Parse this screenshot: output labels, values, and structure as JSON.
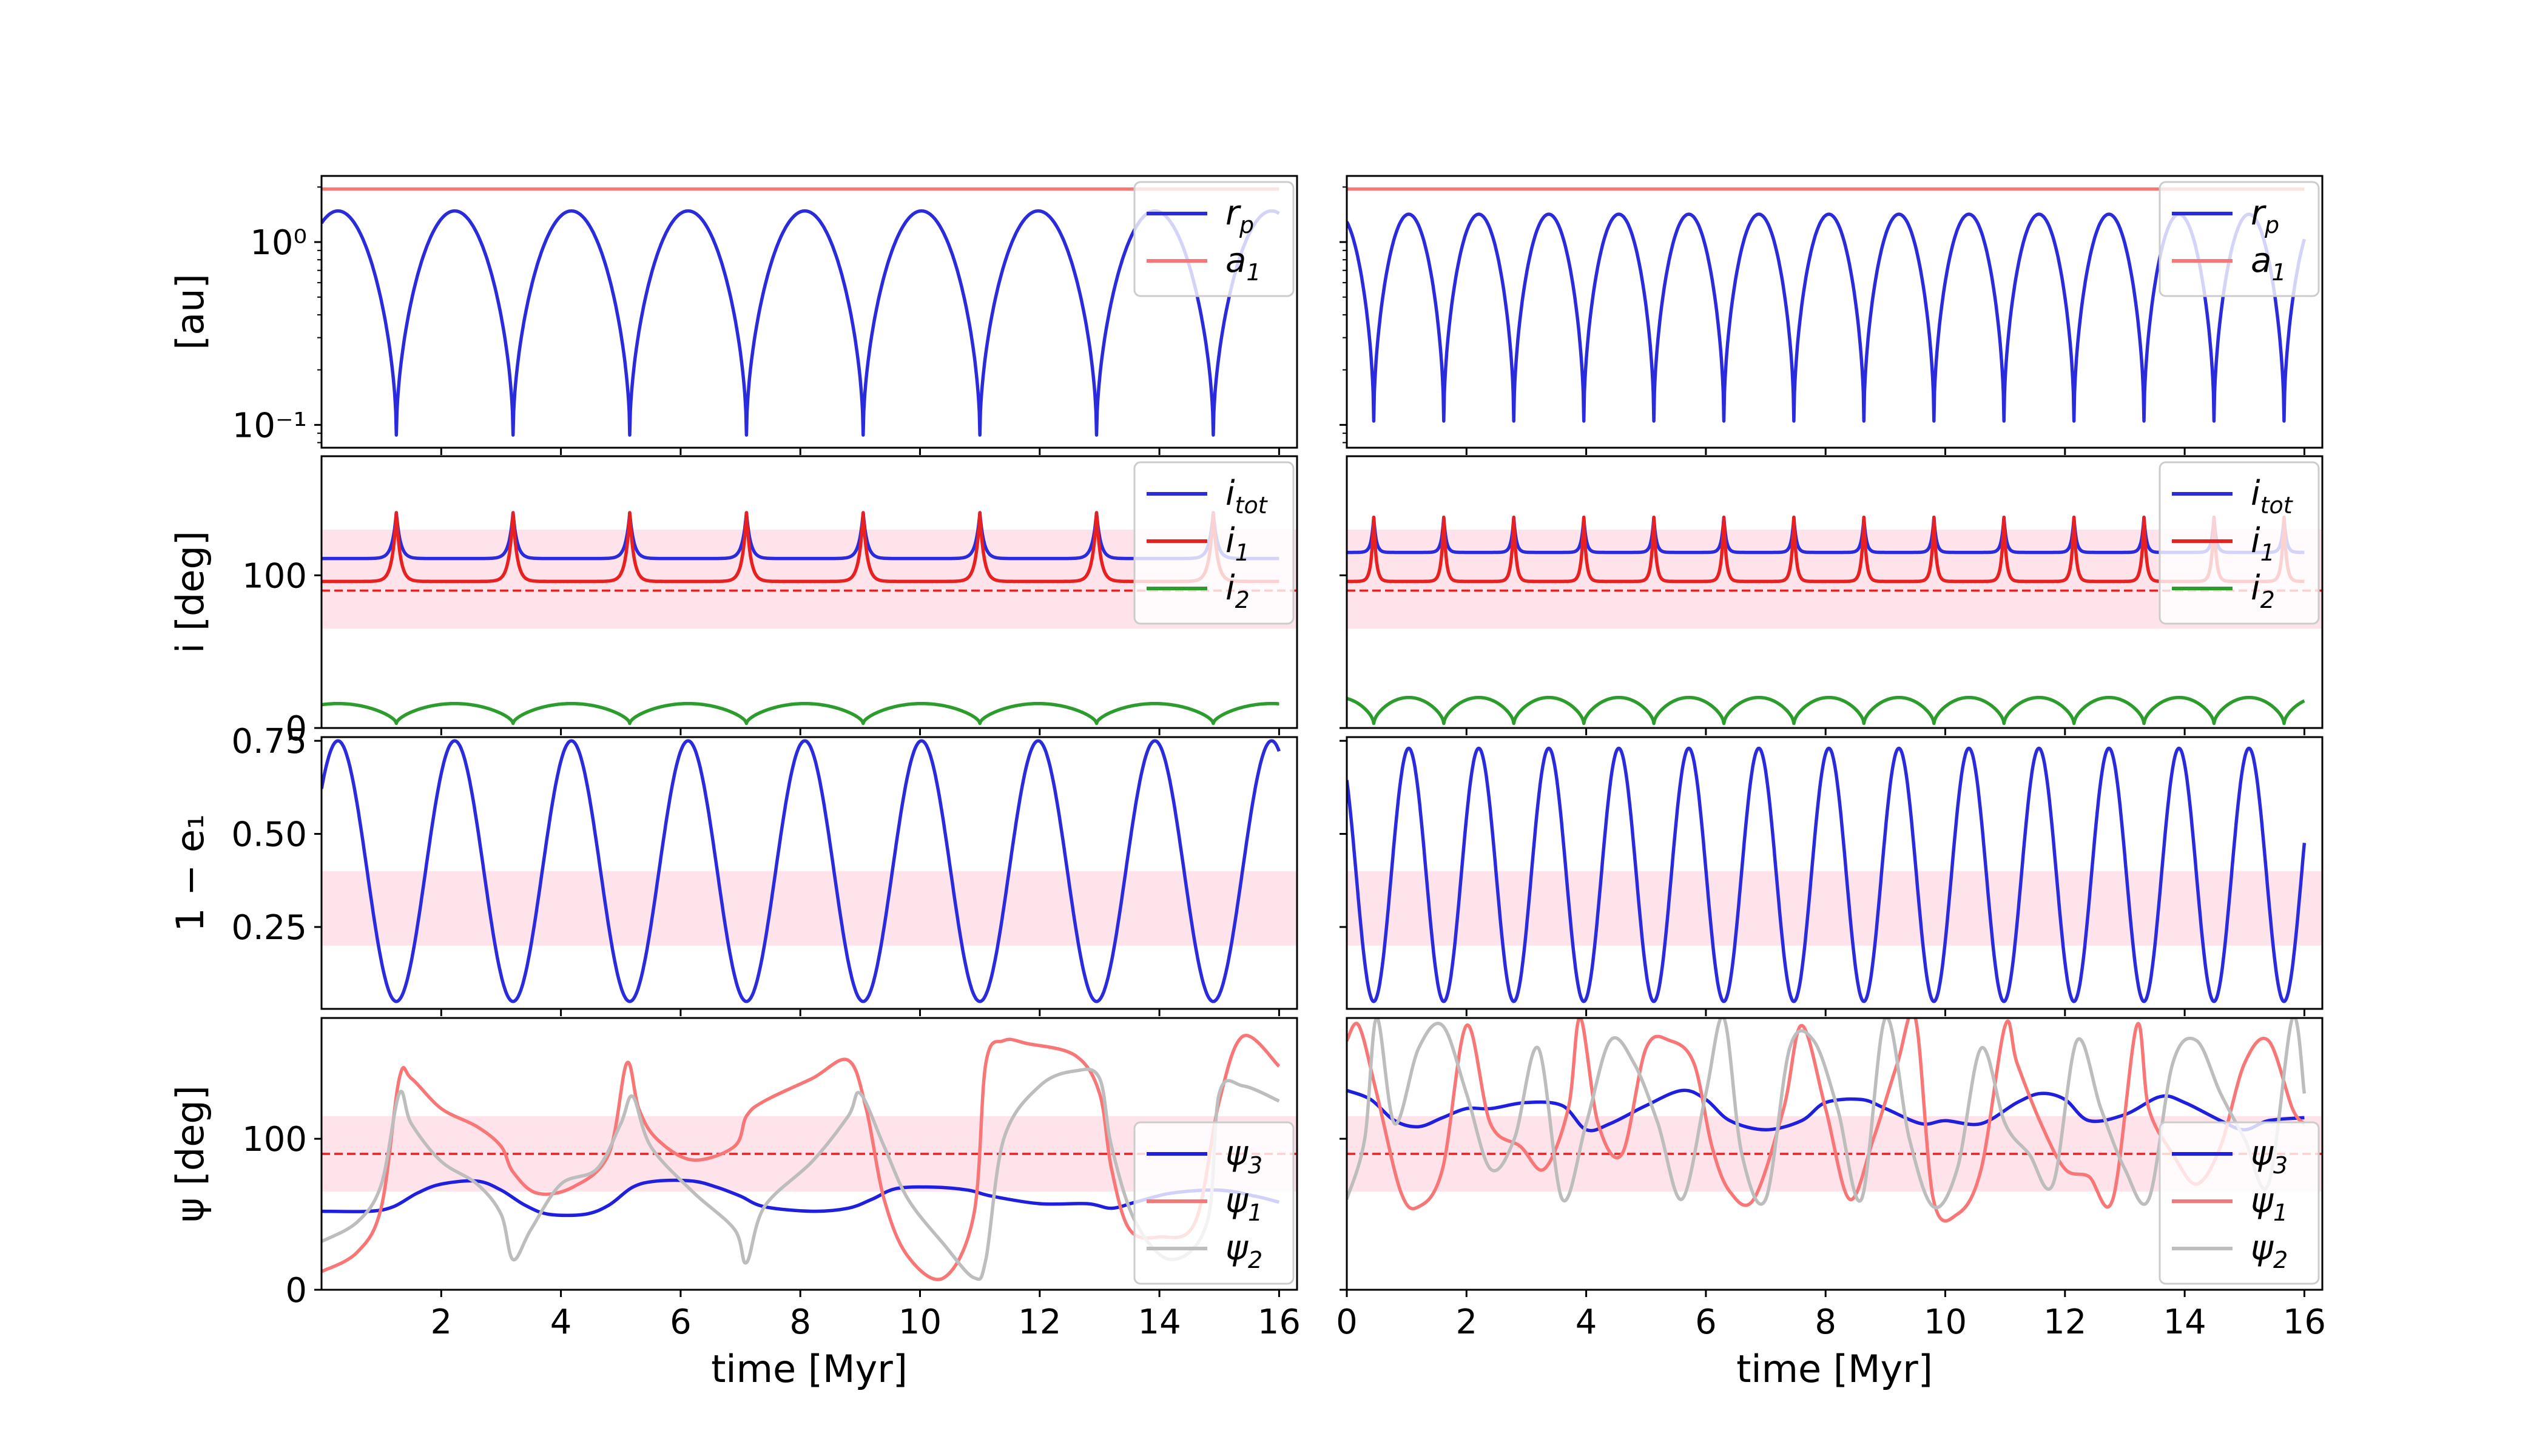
{
  "chart_data": [
    {
      "type": "line",
      "panel": "top-left",
      "ylabel": "[au]",
      "yscale": "log",
      "xlim": [
        0,
        16.3
      ],
      "ylim": [
        0.075,
        2.3
      ],
      "ytick_labels": [
        "10⁻¹",
        "10⁰"
      ],
      "ytick_values": [
        0.1,
        1
      ],
      "xtick_labels": [],
      "legend": "top-right",
      "series": [
        {
          "name": "r_p",
          "color": "#2b2bde",
          "kind": "rp",
          "min": 0.088,
          "max": 1.48,
          "period": 1.95,
          "phase": 1.25
        },
        {
          "name": "a₁",
          "color": "#f87676",
          "kind": "const",
          "value": 1.95
        }
      ],
      "legend_entries": [
        {
          "label": "r",
          "sub": "p",
          "color": "#2b2bde"
        },
        {
          "label": "a",
          "sub": "1",
          "color": "#f87676"
        }
      ]
    },
    {
      "type": "line",
      "panel": "top-right",
      "ylabel": "",
      "yscale": "log",
      "xlim": [
        0,
        16.3
      ],
      "ylim": [
        0.075,
        2.3
      ],
      "ytick_labels": [],
      "xtick_labels": [],
      "legend": "top-right",
      "series": [
        {
          "name": "r_p",
          "color": "#2b2bde",
          "kind": "rp",
          "min": 0.105,
          "max": 1.42,
          "period": 1.17,
          "phase": 0.45
        },
        {
          "name": "a₁",
          "color": "#f87676",
          "kind": "const",
          "value": 1.95
        }
      ],
      "legend_entries": [
        {
          "label": "r",
          "sub": "p",
          "color": "#2b2bde"
        },
        {
          "label": "a",
          "sub": "1",
          "color": "#f87676"
        }
      ]
    },
    {
      "type": "line",
      "panel": "row2-left",
      "ylabel": "i [deg]",
      "xlim": [
        0,
        16.3
      ],
      "ylim": [
        0,
        178
      ],
      "ytick_labels": [
        "0",
        "100"
      ],
      "ytick_values": [
        0,
        100
      ],
      "band": [
        65,
        130
      ],
      "hline": 90,
      "legend": "top-right",
      "series": [
        {
          "name": "i_tot",
          "color": "#2b2bde",
          "kind": "spike",
          "base": 111,
          "peak": 141,
          "period": 1.95,
          "phase": 1.25
        },
        {
          "name": "i₁",
          "color": "#e8201f",
          "kind": "spike",
          "base": 96,
          "peak": 141,
          "period": 1.95,
          "phase": 1.25
        },
        {
          "name": "i₂",
          "color": "#2c9c2c",
          "kind": "dip",
          "base": 16,
          "low": 3,
          "period": 1.95,
          "phase": 1.25
        }
      ],
      "legend_entries": [
        {
          "label": "i",
          "sub": "tot",
          "color": "#2b2bde"
        },
        {
          "label": "i",
          "sub": "1",
          "color": "#e8201f"
        },
        {
          "label": "i",
          "sub": "2",
          "color": "#2c9c2c"
        }
      ]
    },
    {
      "type": "line",
      "panel": "row2-right",
      "ylabel": "",
      "xlim": [
        0,
        16.3
      ],
      "ylim": [
        0,
        178
      ],
      "ytick_labels": [],
      "band": [
        65,
        130
      ],
      "hline": 90,
      "legend": "top-right",
      "series": [
        {
          "name": "i_tot",
          "color": "#2b2bde",
          "kind": "spike",
          "base": 115,
          "peak": 138,
          "period": 1.17,
          "phase": 0.45
        },
        {
          "name": "i₁",
          "color": "#e8201f",
          "kind": "spike",
          "base": 96,
          "peak": 138,
          "period": 1.17,
          "phase": 0.45
        },
        {
          "name": "i₂",
          "color": "#2c9c2c",
          "kind": "dip",
          "base": 20,
          "low": 3,
          "period": 1.17,
          "phase": 0.45
        }
      ],
      "legend_entries": [
        {
          "label": "i",
          "sub": "tot",
          "color": "#2b2bde"
        },
        {
          "label": "i",
          "sub": "1",
          "color": "#e8201f"
        },
        {
          "label": "i",
          "sub": "2",
          "color": "#2c9c2c"
        }
      ]
    },
    {
      "type": "line",
      "panel": "row3-left",
      "ylabel": "1 − e₁",
      "xlim": [
        0,
        16.3
      ],
      "ylim": [
        0.03,
        0.76
      ],
      "ytick_labels": [
        "0.25",
        "0.50",
        "0.75"
      ],
      "ytick_values": [
        0.25,
        0.5,
        0.75
      ],
      "band": [
        0.2,
        0.4
      ],
      "series": [
        {
          "name": "1-e1",
          "color": "#2b2bde",
          "kind": "osc",
          "min": 0.05,
          "max": 0.75,
          "period": 1.95,
          "phase": 1.25
        }
      ]
    },
    {
      "type": "line",
      "panel": "row3-right",
      "ylabel": "",
      "xlim": [
        0,
        16.3
      ],
      "ylim": [
        0.03,
        0.76
      ],
      "ytick_labels": [],
      "band": [
        0.2,
        0.4
      ],
      "series": [
        {
          "name": "1-e1",
          "color": "#2b2bde",
          "kind": "osc",
          "min": 0.05,
          "max": 0.73,
          "period": 1.17,
          "phase": 0.45
        }
      ]
    },
    {
      "type": "line",
      "panel": "row4-left",
      "ylabel": "ψ [deg]",
      "xlabel": "time [Myr]",
      "xlim": [
        0,
        16.3
      ],
      "ylim": [
        0,
        180
      ],
      "ytick_labels": [
        "0",
        "100"
      ],
      "ytick_values": [
        0,
        100
      ],
      "xtick_labels": [
        "2",
        "4",
        "6",
        "8",
        "10",
        "12",
        "14",
        "16"
      ],
      "xtick_values": [
        2,
        4,
        6,
        8,
        10,
        12,
        14,
        16
      ],
      "band": [
        65,
        115
      ],
      "hline": 90,
      "legend": "lower-right",
      "series": [
        {
          "name": "ψ₃",
          "color": "#1f1fe0",
          "x": [
            0,
            0.8,
            1.2,
            1.6,
            2.0,
            2.6,
            3.0,
            3.4,
            3.8,
            4.4,
            4.8,
            5.2,
            5.6,
            6.2,
            6.6,
            7.0,
            7.4,
            8.2,
            8.8,
            9.2,
            9.6,
            10.2,
            10.8,
            11.2,
            12.0,
            12.8,
            13.2,
            13.6,
            14.2,
            15.0,
            15.6,
            16.0
          ],
          "values": [
            52,
            52,
            55,
            64,
            70,
            72,
            66,
            56,
            50,
            50,
            56,
            68,
            72,
            72,
            68,
            62,
            55,
            52,
            54,
            60,
            67,
            68,
            66,
            62,
            57,
            57,
            54,
            58,
            64,
            66,
            62,
            58
          ]
        },
        {
          "name": "ψ₁",
          "color": "#f87676",
          "x": [
            0,
            0.6,
            1.0,
            1.3,
            1.5,
            2.0,
            2.6,
            3.0,
            3.2,
            3.6,
            4.2,
            4.8,
            5.1,
            5.3,
            5.6,
            6.2,
            6.9,
            7.1,
            7.4,
            8.2,
            8.8,
            9.1,
            9.4,
            9.8,
            10.4,
            10.9,
            11.1,
            11.4,
            11.8,
            12.6,
            13.0,
            13.2,
            13.5,
            14.0,
            14.6,
            15.0,
            15.4,
            16.0
          ],
          "values": [
            12,
            25,
            55,
            140,
            140,
            120,
            108,
            95,
            78,
            64,
            68,
            90,
            150,
            120,
            100,
            86,
            95,
            115,
            125,
            140,
            152,
            120,
            60,
            22,
            8,
            50,
            150,
            165,
            163,
            155,
            130,
            80,
            40,
            35,
            45,
            125,
            168,
            148
          ]
        },
        {
          "name": "ψ₂",
          "color": "#bdbdbd",
          "x": [
            0,
            0.6,
            1.0,
            1.3,
            1.5,
            2.0,
            2.6,
            3.0,
            3.2,
            3.5,
            4.0,
            4.6,
            5.0,
            5.2,
            5.5,
            6.2,
            6.9,
            7.1,
            7.4,
            8.2,
            8.8,
            9.0,
            9.4,
            9.8,
            10.4,
            10.9,
            11.1,
            11.4,
            12.0,
            12.6,
            13.0,
            13.2,
            13.6,
            14.2,
            14.8,
            15.0,
            15.4,
            16.0
          ],
          "values": [
            32,
            45,
            70,
            130,
            110,
            85,
            70,
            50,
            20,
            40,
            70,
            80,
            110,
            128,
            95,
            65,
            40,
            18,
            55,
            85,
            115,
            130,
            95,
            60,
            30,
            8,
            20,
            100,
            135,
            145,
            140,
            95,
            45,
            20,
            45,
            130,
            135,
            125
          ]
        }
      ],
      "legend_entries": [
        {
          "label": "ψ",
          "sub": "3",
          "color": "#1f1fe0"
        },
        {
          "label": "ψ",
          "sub": "1",
          "color": "#f87676"
        },
        {
          "label": "ψ",
          "sub": "2",
          "color": "#bdbdbd"
        }
      ]
    },
    {
      "type": "line",
      "panel": "row4-right",
      "ylabel": "",
      "xlabel": "time [Myr]",
      "xlim": [
        0,
        16.3
      ],
      "ylim": [
        0,
        180
      ],
      "ytick_labels": [],
      "xtick_labels": [
        "0",
        "2",
        "4",
        "6",
        "8",
        "10",
        "12",
        "14",
        "16"
      ],
      "xtick_values": [
        0,
        2,
        4,
        6,
        8,
        10,
        12,
        14,
        16
      ],
      "band": [
        65,
        115
      ],
      "hline": 90,
      "legend": "lower-right",
      "series": [
        {
          "name": "ψ₃",
          "color": "#1f1fe0",
          "x": [
            0,
            0.4,
            0.8,
            1.2,
            1.6,
            2.0,
            2.4,
            3.0,
            3.6,
            4.0,
            4.4,
            5.0,
            5.6,
            6.0,
            6.4,
            7.0,
            7.6,
            8.0,
            8.6,
            9.0,
            9.6,
            10.0,
            10.6,
            11.2,
            11.6,
            12.0,
            12.4,
            13.0,
            13.6,
            14.0,
            14.6,
            15.0,
            15.4,
            16.0
          ],
          "values": [
            132,
            126,
            112,
            108,
            114,
            120,
            120,
            124,
            122,
            106,
            110,
            122,
            132,
            126,
            112,
            106,
            112,
            124,
            126,
            120,
            110,
            112,
            110,
            124,
            130,
            126,
            112,
            116,
            128,
            124,
            112,
            106,
            112,
            114
          ]
        },
        {
          "name": "ψ₁",
          "color": "#f87676",
          "x": [
            0,
            0.2,
            0.5,
            0.9,
            1.2,
            1.6,
            2.0,
            2.4,
            2.9,
            3.3,
            3.7,
            3.9,
            4.2,
            4.6,
            5.0,
            5.4,
            5.8,
            6.1,
            6.4,
            6.8,
            7.3,
            7.6,
            8.0,
            8.4,
            8.8,
            9.2,
            9.5,
            9.8,
            10.2,
            10.6,
            11.0,
            11.2,
            11.6,
            12.0,
            12.4,
            12.8,
            13.2,
            13.4,
            13.8,
            14.2,
            14.6,
            15.0,
            15.4,
            15.8,
            16.0
          ],
          "values": [
            165,
            175,
            130,
            65,
            55,
            80,
            175,
            110,
            95,
            80,
            120,
            180,
            110,
            90,
            160,
            165,
            150,
            95,
            65,
            60,
            120,
            175,
            120,
            60,
            100,
            150,
            180,
            60,
            50,
            80,
            175,
            150,
            110,
            80,
            75,
            60,
            175,
            120,
            90,
            70,
            95,
            150,
            165,
            120,
            110
          ]
        },
        {
          "name": "ψ₂",
          "color": "#bdbdbd",
          "x": [
            0,
            0.3,
            0.5,
            0.8,
            1.2,
            1.6,
            2.0,
            2.4,
            2.8,
            3.2,
            3.6,
            4.0,
            4.4,
            4.8,
            5.2,
            5.6,
            6.0,
            6.3,
            6.6,
            7.0,
            7.4,
            7.8,
            8.2,
            8.6,
            9.0,
            9.4,
            9.8,
            10.2,
            10.6,
            11.0,
            11.4,
            11.8,
            12.2,
            12.6,
            13.0,
            13.4,
            13.8,
            14.2,
            14.6,
            15.0,
            15.4,
            15.8,
            16.0
          ],
          "values": [
            60,
            100,
            180,
            110,
            160,
            175,
            130,
            80,
            100,
            160,
            60,
            110,
            165,
            150,
            110,
            60,
            130,
            180,
            90,
            60,
            160,
            165,
            120,
            60,
            180,
            100,
            55,
            80,
            160,
            110,
            90,
            70,
            165,
            120,
            80,
            60,
            150,
            165,
            130,
            100,
            70,
            180,
            130
          ]
        }
      ],
      "legend_entries": [
        {
          "label": "ψ",
          "sub": "3",
          "color": "#1f1fe0"
        },
        {
          "label": "ψ",
          "sub": "1",
          "color": "#f87676"
        },
        {
          "label": "ψ",
          "sub": "2",
          "color": "#bdbdbd"
        }
      ]
    }
  ]
}
